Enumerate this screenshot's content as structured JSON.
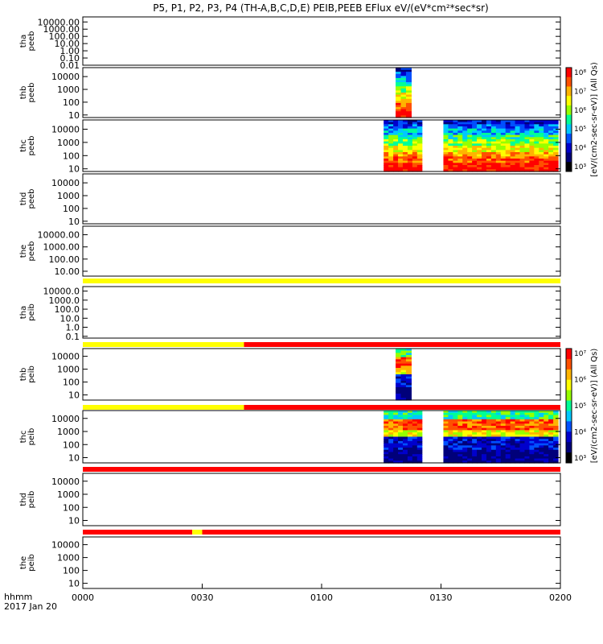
{
  "chart_data": {
    "type": "heatmap",
    "title": "P5, P1, P2, P3, P4 (TH-A,B,C,D,E) PEIB,PEEB EFlux eV/(eV*cm²*sec*sr)",
    "date_label": "2017 Jan 20",
    "x_axis_label": "hhmm",
    "x_ticks": [
      "0000",
      "0030",
      "0100",
      "0130",
      "0200"
    ],
    "x_range_min": [
      0,
      120
    ],
    "panels": [
      {
        "probe": "tha",
        "product": "peeb",
        "y_ticks": [
          "10000.00",
          "1000.00",
          "100.00",
          "10.00",
          "1.00",
          "0.10",
          "0.01"
        ],
        "log_range": [
          -2,
          4.7
        ],
        "data_blocks": []
      },
      {
        "probe": "thb",
        "product": "peeb",
        "y_ticks": [
          "10000",
          "1000",
          "100",
          "10"
        ],
        "log_range": [
          0.8,
          4.7
        ],
        "data_blocks": [
          {
            "t": [
              78.6,
              82.5
            ],
            "kind": "hot"
          }
        ]
      },
      {
        "probe": "thc",
        "product": "peeb",
        "y_ticks": [
          "10000",
          "1000",
          "100",
          "10"
        ],
        "log_range": [
          0.8,
          4.7
        ],
        "data_blocks": [
          {
            "t": [
              75.6,
              85.2
            ],
            "kind": "hot"
          },
          {
            "t": [
              90.6,
              119.4
            ],
            "kind": "hot"
          }
        ]
      },
      {
        "probe": "thd",
        "product": "peeb",
        "y_ticks": [
          "10000",
          "1000",
          "100",
          "10"
        ],
        "log_range": [
          0.8,
          4.7
        ],
        "data_blocks": []
      },
      {
        "probe": "the",
        "product": "peeb",
        "y_ticks": [
          "10000.00",
          "1000.00",
          "100.00",
          "10.00"
        ],
        "log_range": [
          0.6,
          4.7
        ],
        "data_blocks": []
      },
      {
        "probe": "tha",
        "product": "peib",
        "y_ticks": [
          "10000.0",
          "1000.0",
          "100.0",
          "10.0",
          "1.0",
          "0.1"
        ],
        "log_range": [
          -1.2,
          4.5
        ],
        "data_blocks": []
      },
      {
        "probe": "thb",
        "product": "peib",
        "y_ticks": [
          "10000",
          "1000",
          "100",
          "10"
        ],
        "log_range": [
          0.6,
          4.6
        ],
        "data_blocks": [
          {
            "t": [
              78.6,
              82.5
            ],
            "kind": "ion"
          }
        ]
      },
      {
        "probe": "thc",
        "product": "peib",
        "y_ticks": [
          "10000",
          "1000",
          "100",
          "10"
        ],
        "log_range": [
          0.6,
          4.6
        ],
        "data_blocks": [
          {
            "t": [
              75.6,
              85.2
            ],
            "kind": "ion"
          },
          {
            "t": [
              90.6,
              119.4
            ],
            "kind": "ion"
          }
        ]
      },
      {
        "probe": "thd",
        "product": "peib",
        "y_ticks": [
          "10000",
          "1000",
          "100",
          "10"
        ],
        "log_range": [
          0.6,
          4.6
        ],
        "data_blocks": []
      },
      {
        "probe": "the",
        "product": "peib",
        "y_ticks": [
          "10000",
          "1000",
          "100",
          "10"
        ],
        "log_range": [
          0.6,
          4.6
        ],
        "data_blocks": []
      }
    ],
    "status_bars": [
      {
        "after_panel": 4,
        "segments": [
          {
            "t": [
              0,
              120
            ],
            "color": "#ffff00"
          }
        ]
      },
      {
        "after_panel": 5,
        "segments": [
          {
            "t": [
              0,
              40.5
            ],
            "color": "#ffff00"
          },
          {
            "t": [
              40.5,
              120
            ],
            "color": "#ff0000"
          }
        ]
      },
      {
        "after_panel": 6,
        "segments": [
          {
            "t": [
              0,
              40.5
            ],
            "color": "#ffff00"
          },
          {
            "t": [
              40.5,
              120
            ],
            "color": "#ff0000"
          }
        ]
      },
      {
        "after_panel": 7,
        "segments": [
          {
            "t": [
              0,
              120
            ],
            "color": "#ff0000"
          }
        ]
      },
      {
        "after_panel": 8,
        "segments": [
          {
            "t": [
              0,
              27.5
            ],
            "color": "#ff0000"
          },
          {
            "t": [
              27.5,
              30
            ],
            "color": "#ffff00"
          },
          {
            "t": [
              30,
              120
            ],
            "color": "#ff0000"
          }
        ]
      }
    ],
    "colorbars": [
      {
        "label": "[eV/(cm2-sec-sr-eV)] (All Qs)",
        "panels": [
          1,
          2
        ],
        "ticks": [
          "10⁸",
          "10⁷",
          "10⁶",
          "10⁵",
          "10⁴",
          "10³"
        ]
      },
      {
        "label": "[eV/(cm2-sec-sr-eV)] (All Qs)",
        "panels": [
          6,
          7
        ],
        "ticks": [
          "10⁷",
          "10⁶",
          "10⁵",
          "10⁴",
          "10³"
        ]
      }
    ]
  }
}
